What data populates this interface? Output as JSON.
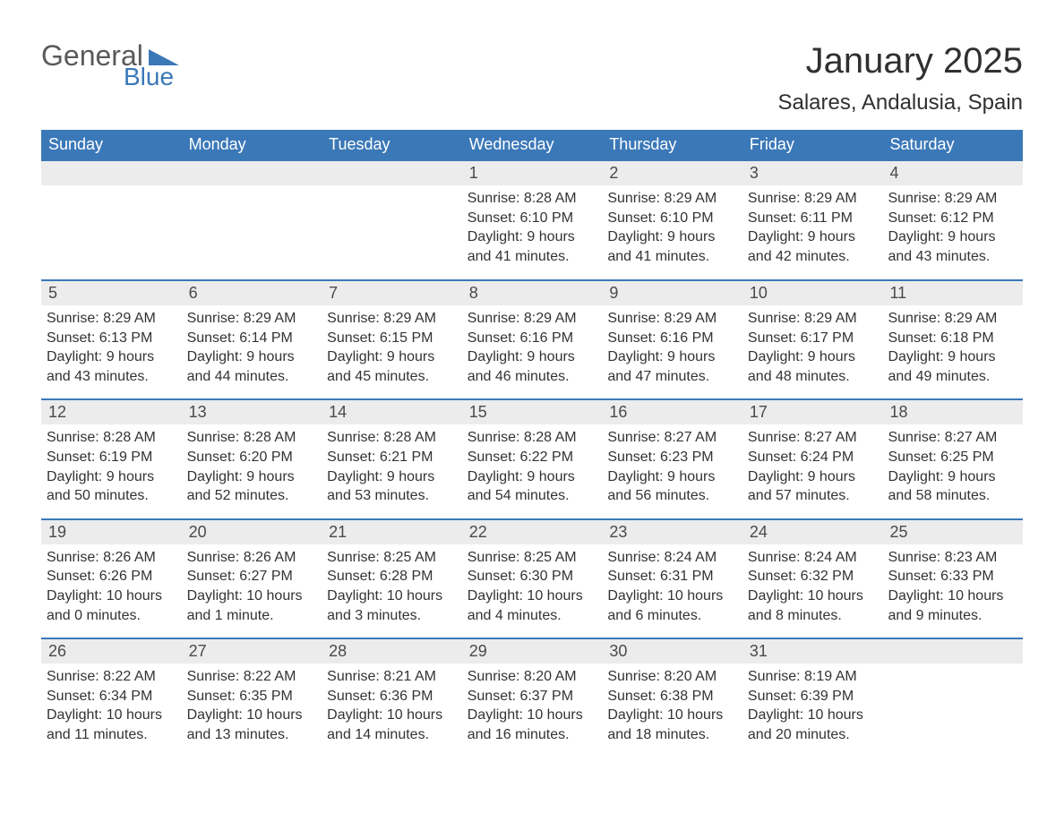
{
  "brand": {
    "word1": "General",
    "word2": "Blue",
    "text_color": "#5a5a5a",
    "accent_color": "#3b78b8"
  },
  "title": "January 2025",
  "location": "Salares, Andalusia, Spain",
  "styling": {
    "header_bg": "#3b78b8",
    "header_text": "#ffffff",
    "daynum_bg": "#ececec",
    "divider_color": "#3b78b8",
    "body_text": "#333333",
    "page_bg": "#ffffff",
    "title_fontsize": 40,
    "location_fontsize": 24,
    "weekday_fontsize": 18,
    "body_fontsize": 16
  },
  "weekdays": [
    "Sunday",
    "Monday",
    "Tuesday",
    "Wednesday",
    "Thursday",
    "Friday",
    "Saturday"
  ],
  "weeks": [
    [
      null,
      null,
      null,
      {
        "d": "1",
        "sunrise": "Sunrise: 8:28 AM",
        "sunset": "Sunset: 6:10 PM",
        "dl1": "Daylight: 9 hours",
        "dl2": "and 41 minutes."
      },
      {
        "d": "2",
        "sunrise": "Sunrise: 8:29 AM",
        "sunset": "Sunset: 6:10 PM",
        "dl1": "Daylight: 9 hours",
        "dl2": "and 41 minutes."
      },
      {
        "d": "3",
        "sunrise": "Sunrise: 8:29 AM",
        "sunset": "Sunset: 6:11 PM",
        "dl1": "Daylight: 9 hours",
        "dl2": "and 42 minutes."
      },
      {
        "d": "4",
        "sunrise": "Sunrise: 8:29 AM",
        "sunset": "Sunset: 6:12 PM",
        "dl1": "Daylight: 9 hours",
        "dl2": "and 43 minutes."
      }
    ],
    [
      {
        "d": "5",
        "sunrise": "Sunrise: 8:29 AM",
        "sunset": "Sunset: 6:13 PM",
        "dl1": "Daylight: 9 hours",
        "dl2": "and 43 minutes."
      },
      {
        "d": "6",
        "sunrise": "Sunrise: 8:29 AM",
        "sunset": "Sunset: 6:14 PM",
        "dl1": "Daylight: 9 hours",
        "dl2": "and 44 minutes."
      },
      {
        "d": "7",
        "sunrise": "Sunrise: 8:29 AM",
        "sunset": "Sunset: 6:15 PM",
        "dl1": "Daylight: 9 hours",
        "dl2": "and 45 minutes."
      },
      {
        "d": "8",
        "sunrise": "Sunrise: 8:29 AM",
        "sunset": "Sunset: 6:16 PM",
        "dl1": "Daylight: 9 hours",
        "dl2": "and 46 minutes."
      },
      {
        "d": "9",
        "sunrise": "Sunrise: 8:29 AM",
        "sunset": "Sunset: 6:16 PM",
        "dl1": "Daylight: 9 hours",
        "dl2": "and 47 minutes."
      },
      {
        "d": "10",
        "sunrise": "Sunrise: 8:29 AM",
        "sunset": "Sunset: 6:17 PM",
        "dl1": "Daylight: 9 hours",
        "dl2": "and 48 minutes."
      },
      {
        "d": "11",
        "sunrise": "Sunrise: 8:29 AM",
        "sunset": "Sunset: 6:18 PM",
        "dl1": "Daylight: 9 hours",
        "dl2": "and 49 minutes."
      }
    ],
    [
      {
        "d": "12",
        "sunrise": "Sunrise: 8:28 AM",
        "sunset": "Sunset: 6:19 PM",
        "dl1": "Daylight: 9 hours",
        "dl2": "and 50 minutes."
      },
      {
        "d": "13",
        "sunrise": "Sunrise: 8:28 AM",
        "sunset": "Sunset: 6:20 PM",
        "dl1": "Daylight: 9 hours",
        "dl2": "and 52 minutes."
      },
      {
        "d": "14",
        "sunrise": "Sunrise: 8:28 AM",
        "sunset": "Sunset: 6:21 PM",
        "dl1": "Daylight: 9 hours",
        "dl2": "and 53 minutes."
      },
      {
        "d": "15",
        "sunrise": "Sunrise: 8:28 AM",
        "sunset": "Sunset: 6:22 PM",
        "dl1": "Daylight: 9 hours",
        "dl2": "and 54 minutes."
      },
      {
        "d": "16",
        "sunrise": "Sunrise: 8:27 AM",
        "sunset": "Sunset: 6:23 PM",
        "dl1": "Daylight: 9 hours",
        "dl2": "and 56 minutes."
      },
      {
        "d": "17",
        "sunrise": "Sunrise: 8:27 AM",
        "sunset": "Sunset: 6:24 PM",
        "dl1": "Daylight: 9 hours",
        "dl2": "and 57 minutes."
      },
      {
        "d": "18",
        "sunrise": "Sunrise: 8:27 AM",
        "sunset": "Sunset: 6:25 PM",
        "dl1": "Daylight: 9 hours",
        "dl2": "and 58 minutes."
      }
    ],
    [
      {
        "d": "19",
        "sunrise": "Sunrise: 8:26 AM",
        "sunset": "Sunset: 6:26 PM",
        "dl1": "Daylight: 10 hours",
        "dl2": "and 0 minutes."
      },
      {
        "d": "20",
        "sunrise": "Sunrise: 8:26 AM",
        "sunset": "Sunset: 6:27 PM",
        "dl1": "Daylight: 10 hours",
        "dl2": "and 1 minute."
      },
      {
        "d": "21",
        "sunrise": "Sunrise: 8:25 AM",
        "sunset": "Sunset: 6:28 PM",
        "dl1": "Daylight: 10 hours",
        "dl2": "and 3 minutes."
      },
      {
        "d": "22",
        "sunrise": "Sunrise: 8:25 AM",
        "sunset": "Sunset: 6:30 PM",
        "dl1": "Daylight: 10 hours",
        "dl2": "and 4 minutes."
      },
      {
        "d": "23",
        "sunrise": "Sunrise: 8:24 AM",
        "sunset": "Sunset: 6:31 PM",
        "dl1": "Daylight: 10 hours",
        "dl2": "and 6 minutes."
      },
      {
        "d": "24",
        "sunrise": "Sunrise: 8:24 AM",
        "sunset": "Sunset: 6:32 PM",
        "dl1": "Daylight: 10 hours",
        "dl2": "and 8 minutes."
      },
      {
        "d": "25",
        "sunrise": "Sunrise: 8:23 AM",
        "sunset": "Sunset: 6:33 PM",
        "dl1": "Daylight: 10 hours",
        "dl2": "and 9 minutes."
      }
    ],
    [
      {
        "d": "26",
        "sunrise": "Sunrise: 8:22 AM",
        "sunset": "Sunset: 6:34 PM",
        "dl1": "Daylight: 10 hours",
        "dl2": "and 11 minutes."
      },
      {
        "d": "27",
        "sunrise": "Sunrise: 8:22 AM",
        "sunset": "Sunset: 6:35 PM",
        "dl1": "Daylight: 10 hours",
        "dl2": "and 13 minutes."
      },
      {
        "d": "28",
        "sunrise": "Sunrise: 8:21 AM",
        "sunset": "Sunset: 6:36 PM",
        "dl1": "Daylight: 10 hours",
        "dl2": "and 14 minutes."
      },
      {
        "d": "29",
        "sunrise": "Sunrise: 8:20 AM",
        "sunset": "Sunset: 6:37 PM",
        "dl1": "Daylight: 10 hours",
        "dl2": "and 16 minutes."
      },
      {
        "d": "30",
        "sunrise": "Sunrise: 8:20 AM",
        "sunset": "Sunset: 6:38 PM",
        "dl1": "Daylight: 10 hours",
        "dl2": "and 18 minutes."
      },
      {
        "d": "31",
        "sunrise": "Sunrise: 8:19 AM",
        "sunset": "Sunset: 6:39 PM",
        "dl1": "Daylight: 10 hours",
        "dl2": "and 20 minutes."
      },
      null
    ]
  ]
}
